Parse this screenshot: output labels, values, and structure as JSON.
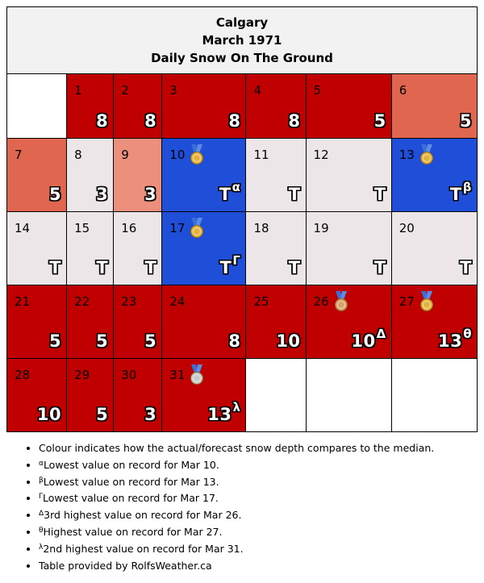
{
  "header": {
    "city": "Calgary",
    "month": "March 1971",
    "subtitle": "Daily Snow On The Ground"
  },
  "colors": {
    "above_median": "#c00000",
    "moderately_above": "#e06650",
    "slightly_above": "#ec8f7d",
    "near_median_trace": "#ede6e8",
    "record_low": "#1f4fd8"
  },
  "chart_data": {
    "type": "table",
    "unit": "cm",
    "first_weekday_offset": 1,
    "days": [
      {
        "day": "1",
        "value": "8",
        "color": "#c00000",
        "sup": "",
        "medal": ""
      },
      {
        "day": "2",
        "value": "8",
        "color": "#c00000",
        "sup": "",
        "medal": ""
      },
      {
        "day": "3",
        "value": "8",
        "color": "#c00000",
        "sup": "",
        "medal": ""
      },
      {
        "day": "4",
        "value": "8",
        "color": "#c00000",
        "sup": "",
        "medal": ""
      },
      {
        "day": "5",
        "value": "5",
        "color": "#c00000",
        "sup": "",
        "medal": ""
      },
      {
        "day": "6",
        "value": "5",
        "color": "#e06650",
        "sup": "",
        "medal": ""
      },
      {
        "day": "7",
        "value": "5",
        "color": "#e06650",
        "sup": "",
        "medal": ""
      },
      {
        "day": "8",
        "value": "3",
        "color": "#ede6e8",
        "sup": "",
        "medal": ""
      },
      {
        "day": "9",
        "value": "3",
        "color": "#ec8f7d",
        "sup": "",
        "medal": ""
      },
      {
        "day": "10",
        "value": "T",
        "color": "#1f4fd8",
        "sup": "α",
        "medal": "gold"
      },
      {
        "day": "11",
        "value": "T",
        "color": "#ede6e8",
        "sup": "",
        "medal": ""
      },
      {
        "day": "12",
        "value": "T",
        "color": "#ede6e8",
        "sup": "",
        "medal": ""
      },
      {
        "day": "13",
        "value": "T",
        "color": "#1f4fd8",
        "sup": "β",
        "medal": "gold"
      },
      {
        "day": "14",
        "value": "T",
        "color": "#ede6e8",
        "sup": "",
        "medal": ""
      },
      {
        "day": "15",
        "value": "T",
        "color": "#ede6e8",
        "sup": "",
        "medal": ""
      },
      {
        "day": "16",
        "value": "T",
        "color": "#ede6e8",
        "sup": "",
        "medal": ""
      },
      {
        "day": "17",
        "value": "T",
        "color": "#1f4fd8",
        "sup": "Γ",
        "medal": "gold"
      },
      {
        "day": "18",
        "value": "T",
        "color": "#ede6e8",
        "sup": "",
        "medal": ""
      },
      {
        "day": "19",
        "value": "T",
        "color": "#ede6e8",
        "sup": "",
        "medal": ""
      },
      {
        "day": "20",
        "value": "T",
        "color": "#ede6e8",
        "sup": "",
        "medal": ""
      },
      {
        "day": "21",
        "value": "5",
        "color": "#c00000",
        "sup": "",
        "medal": ""
      },
      {
        "day": "22",
        "value": "5",
        "color": "#c00000",
        "sup": "",
        "medal": ""
      },
      {
        "day": "23",
        "value": "5",
        "color": "#c00000",
        "sup": "",
        "medal": ""
      },
      {
        "day": "24",
        "value": "8",
        "color": "#c00000",
        "sup": "",
        "medal": ""
      },
      {
        "day": "25",
        "value": "10",
        "color": "#c00000",
        "sup": "",
        "medal": ""
      },
      {
        "day": "26",
        "value": "10",
        "color": "#c00000",
        "sup": "Δ",
        "medal": "bronze"
      },
      {
        "day": "27",
        "value": "13",
        "color": "#c00000",
        "sup": "θ",
        "medal": "gold"
      },
      {
        "day": "28",
        "value": "10",
        "color": "#c00000",
        "sup": "",
        "medal": ""
      },
      {
        "day": "29",
        "value": "5",
        "color": "#c00000",
        "sup": "",
        "medal": ""
      },
      {
        "day": "30",
        "value": "3",
        "color": "#c00000",
        "sup": "",
        "medal": ""
      },
      {
        "day": "31",
        "value": "13",
        "color": "#c00000",
        "sup": "λ",
        "medal": "silver"
      }
    ]
  },
  "notes": [
    {
      "sup": "",
      "text": "Colour indicates how the actual/forecast snow depth compares to the median."
    },
    {
      "sup": "α",
      "text": "Lowest value on record for Mar 10."
    },
    {
      "sup": "β",
      "text": "Lowest value on record for Mar 13."
    },
    {
      "sup": "Γ",
      "text": "Lowest value on record for Mar 17."
    },
    {
      "sup": "Δ",
      "text": "3rd highest value on record for Mar 26."
    },
    {
      "sup": "θ",
      "text": "Highest value on record for Mar 27."
    },
    {
      "sup": "λ",
      "text": "2nd highest value on record for Mar 31."
    },
    {
      "sup": "",
      "text": "Table provided by RolfsWeather.ca"
    }
  ]
}
